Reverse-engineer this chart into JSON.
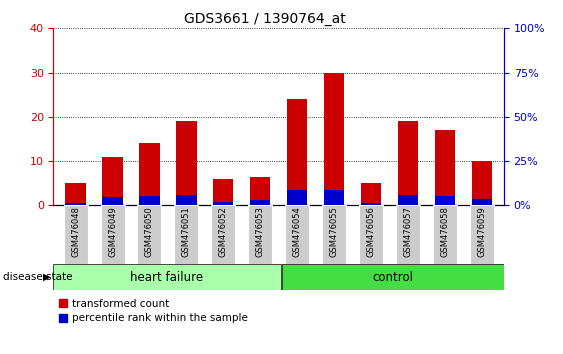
{
  "title": "GDS3661 / 1390764_at",
  "samples": [
    "GSM476048",
    "GSM476049",
    "GSM476050",
    "GSM476051",
    "GSM476052",
    "GSM476053",
    "GSM476054",
    "GSM476055",
    "GSM476056",
    "GSM476057",
    "GSM476058",
    "GSM476059"
  ],
  "red_values": [
    5.0,
    11.0,
    14.0,
    19.0,
    6.0,
    6.5,
    24.0,
    30.0,
    5.0,
    19.0,
    17.0,
    10.0
  ],
  "blue_values": [
    1.5,
    4.5,
    5.5,
    6.0,
    2.0,
    3.0,
    8.5,
    8.5,
    1.5,
    6.0,
    5.0,
    3.5
  ],
  "red_color": "#cc0000",
  "blue_color": "#0000cc",
  "ylim_left": [
    0,
    40
  ],
  "ylim_right": [
    0,
    100
  ],
  "yticks_left": [
    0,
    10,
    20,
    30,
    40
  ],
  "yticks_right": [
    0,
    25,
    50,
    75,
    100
  ],
  "ytick_labels_right": [
    "0%",
    "25%",
    "50%",
    "75%",
    "100%"
  ],
  "heart_failure_label": "heart failure",
  "control_label": "control",
  "disease_state_label": "disease state",
  "legend_red": "transformed count",
  "legend_blue": "percentile rank within the sample",
  "bar_width": 0.55,
  "group_bg_color": "#cccccc",
  "hf_fill_color": "#aaffaa",
  "ctrl_fill_color": "#44dd44",
  "title_fontsize": 10,
  "tick_fontsize": 8,
  "label_color_left": "#cc0000",
  "label_color_right": "#0000cc",
  "n_hf": 6,
  "n_ctrl": 6
}
